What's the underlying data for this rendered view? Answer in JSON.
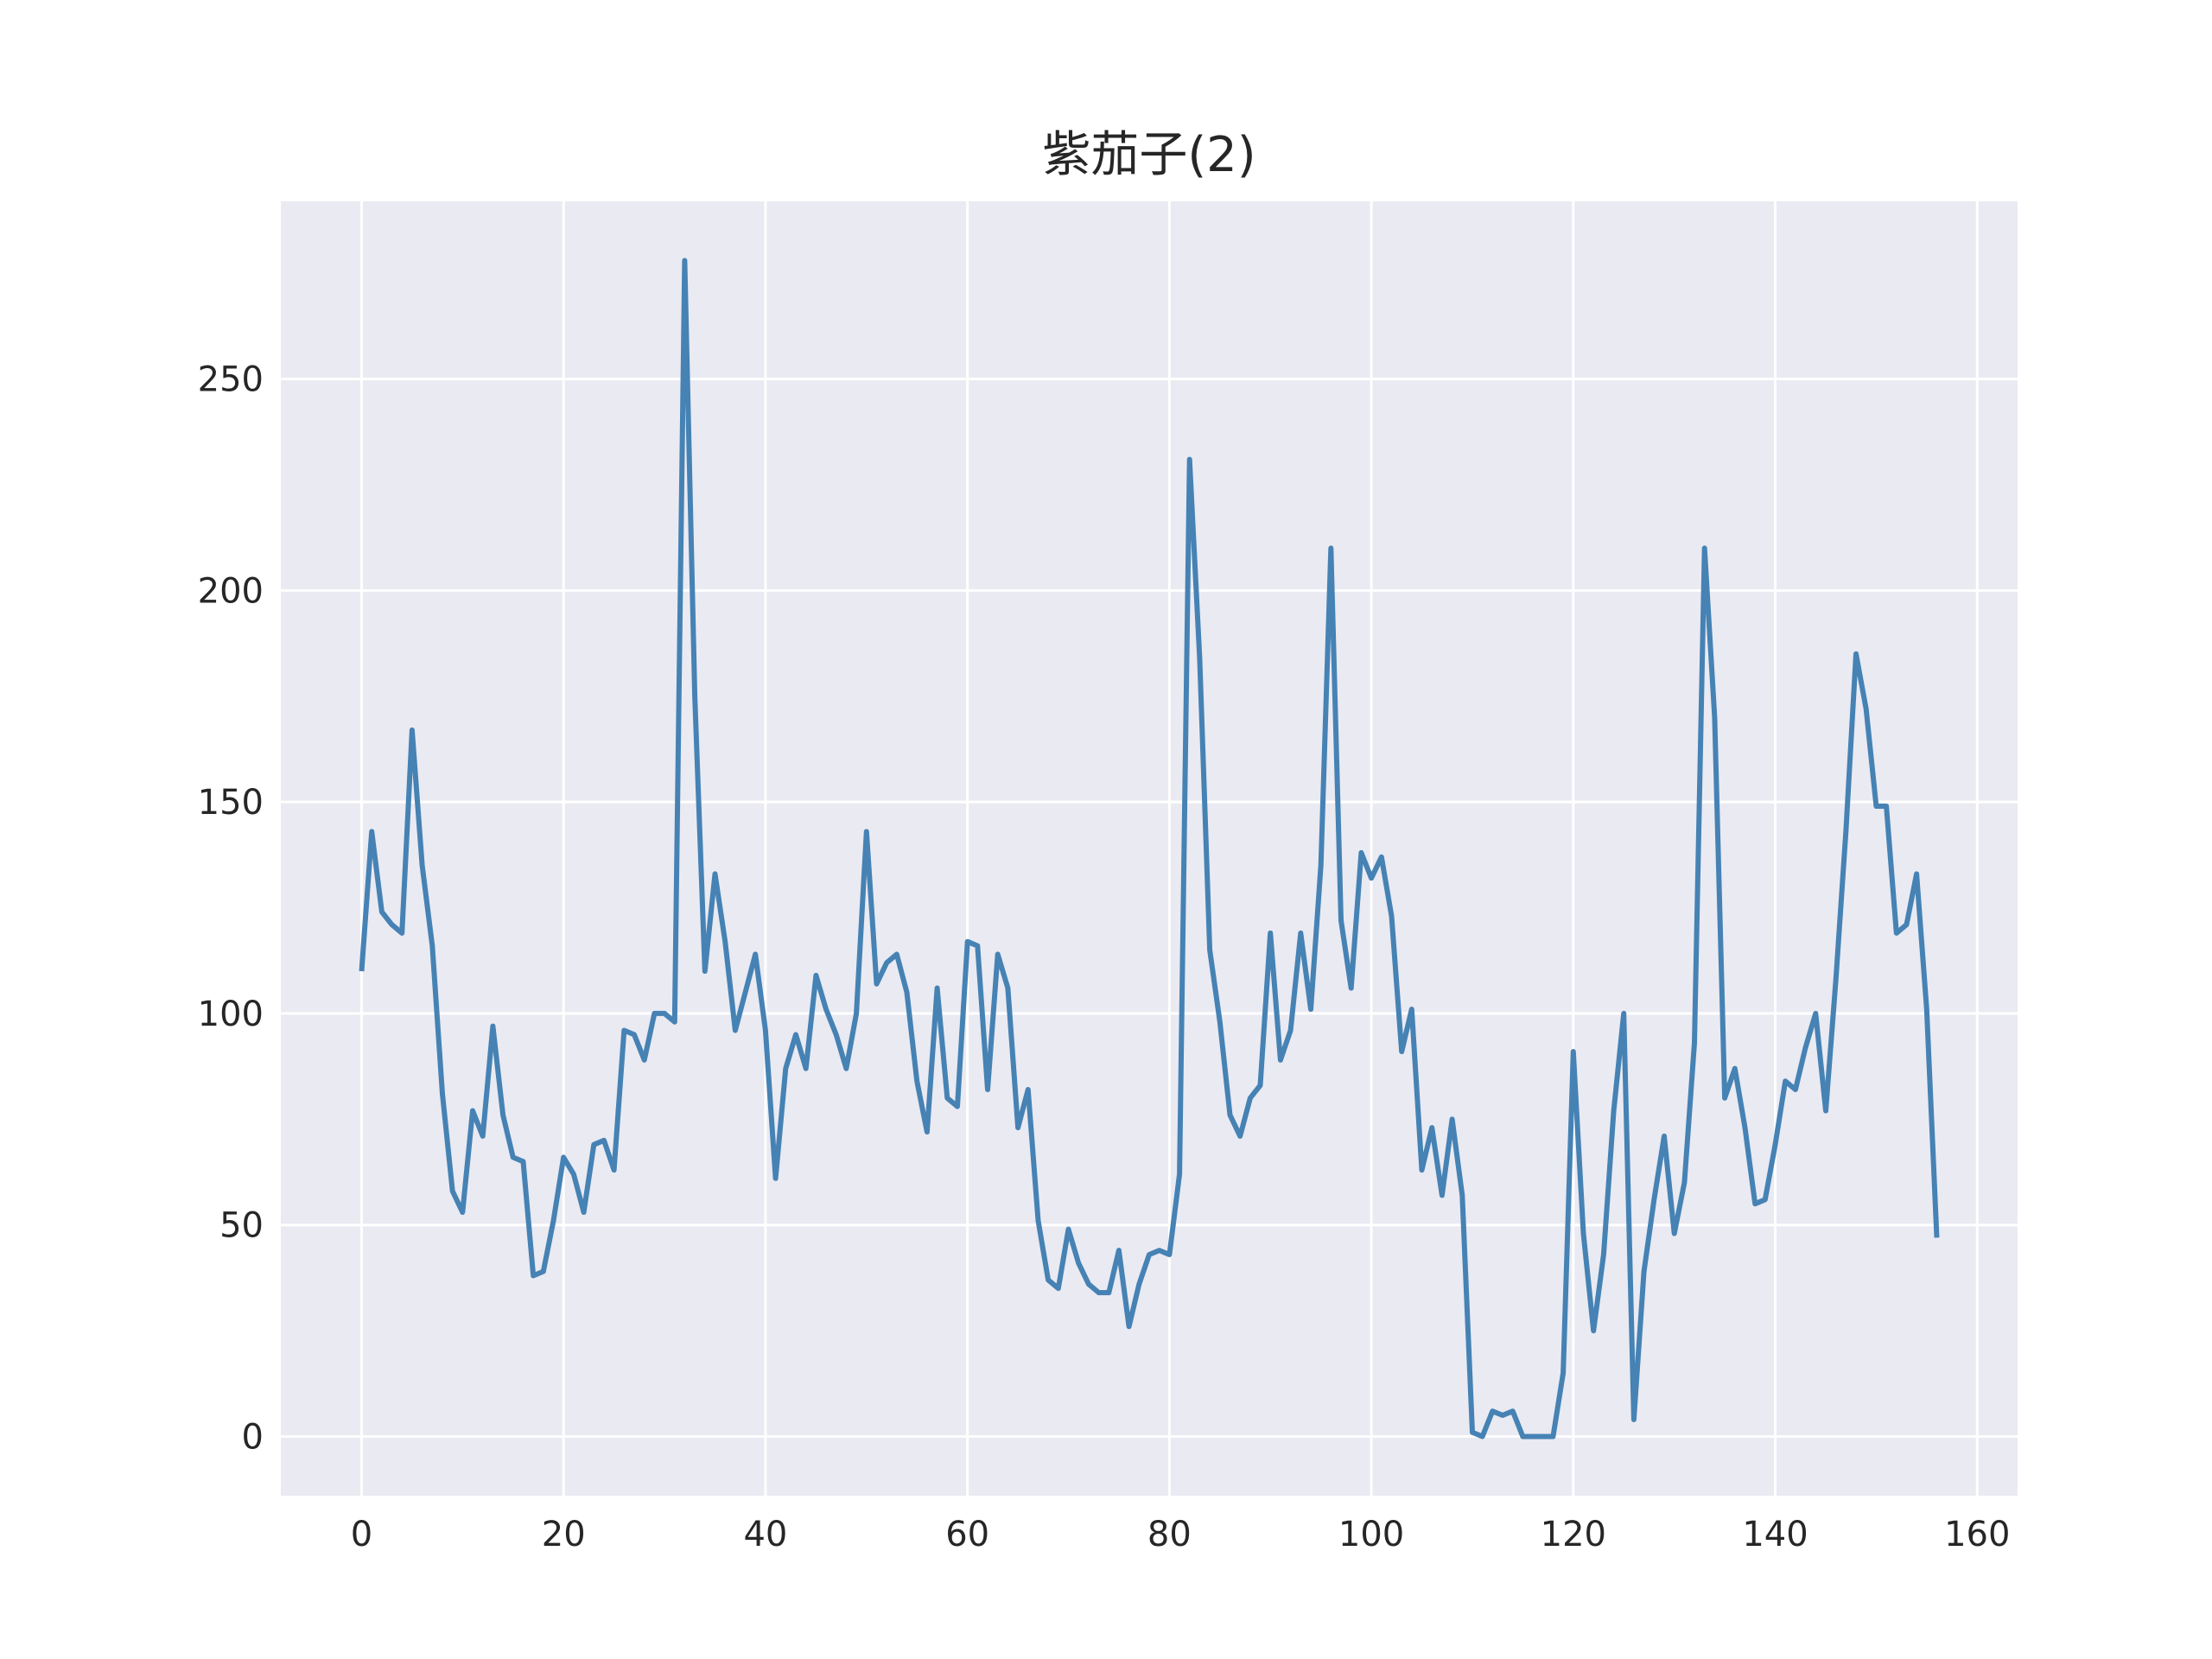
{
  "chart_data": {
    "type": "line",
    "title": "紫茄子(2)",
    "xlabel": "",
    "ylabel": "",
    "xlim": [
      -8,
      164
    ],
    "ylim": [
      -14,
      292
    ],
    "xticks": [
      0,
      20,
      40,
      60,
      80,
      100,
      120,
      140,
      160
    ],
    "yticks": [
      0,
      50,
      100,
      150,
      200,
      250
    ],
    "grid": true,
    "legend": "none",
    "colors": {
      "background": "#eaeaf2",
      "grid": "#ffffff",
      "line": "#4682b4",
      "text": "#262626"
    },
    "series": [
      {
        "x": [
          0,
          1,
          2,
          3,
          4,
          5,
          6,
          7,
          8,
          9,
          10,
          11,
          12,
          13,
          14,
          15,
          16,
          17,
          18,
          19,
          20,
          21,
          22,
          23,
          24,
          25,
          26,
          27,
          28,
          29,
          30,
          31,
          32,
          33,
          34,
          35,
          36,
          37,
          38,
          39,
          40,
          41,
          42,
          43,
          44,
          45,
          46,
          47,
          48,
          49,
          50,
          51,
          52,
          53,
          54,
          55,
          56,
          57,
          58,
          59,
          60,
          61,
          62,
          63,
          64,
          65,
          66,
          67,
          68,
          69,
          70,
          71,
          72,
          73,
          74,
          75,
          76,
          77,
          78,
          79,
          80,
          81,
          82,
          83,
          84,
          85,
          86,
          87,
          88,
          89,
          90,
          91,
          92,
          93,
          94,
          95,
          96,
          97,
          98,
          99,
          100,
          101,
          102,
          103,
          104,
          105,
          106,
          107,
          108,
          109,
          110,
          111,
          112,
          113,
          114,
          115,
          116,
          117,
          118,
          119,
          120,
          121,
          122,
          123,
          124,
          125,
          126,
          127,
          128,
          129,
          130,
          131,
          132,
          133,
          134,
          135,
          136,
          137,
          138,
          139,
          140,
          141,
          142,
          143,
          144,
          145,
          146,
          147,
          148,
          149,
          150,
          151,
          152,
          153,
          154,
          155,
          156
        ],
        "values": [
          110,
          143,
          124,
          121,
          119,
          167,
          135,
          116,
          81,
          58,
          53,
          77,
          71,
          97,
          76,
          66,
          65,
          38,
          39,
          51,
          66,
          62,
          53,
          69,
          70,
          63,
          96,
          95,
          89,
          100,
          100,
          98,
          278,
          175,
          110,
          133,
          117,
          96,
          105,
          114,
          96,
          61,
          87,
          95,
          87,
          109,
          101,
          95,
          87,
          100,
          143,
          107,
          112,
          114,
          105,
          84,
          72,
          106,
          80,
          78,
          117,
          116,
          82,
          114,
          106,
          73,
          82,
          51,
          37,
          35,
          49,
          41,
          36,
          34,
          34,
          44,
          26,
          36,
          43,
          44,
          43,
          62,
          231,
          184,
          115,
          98,
          76,
          71,
          80,
          83,
          119,
          89,
          96,
          119,
          101,
          135,
          210,
          122,
          106,
          138,
          132,
          137,
          123,
          91,
          101,
          63,
          73,
          57,
          75,
          57,
          1,
          0,
          6,
          5,
          6,
          0,
          0,
          0,
          0,
          15,
          91,
          48,
          25,
          43,
          77,
          100,
          4,
          39,
          56,
          71,
          48,
          60,
          93,
          210,
          170,
          80,
          87,
          73,
          55,
          56,
          69,
          84,
          82,
          92,
          100,
          77,
          108,
          143,
          185,
          172,
          149,
          149,
          119,
          121,
          133,
          101,
          47
        ]
      }
    ]
  }
}
